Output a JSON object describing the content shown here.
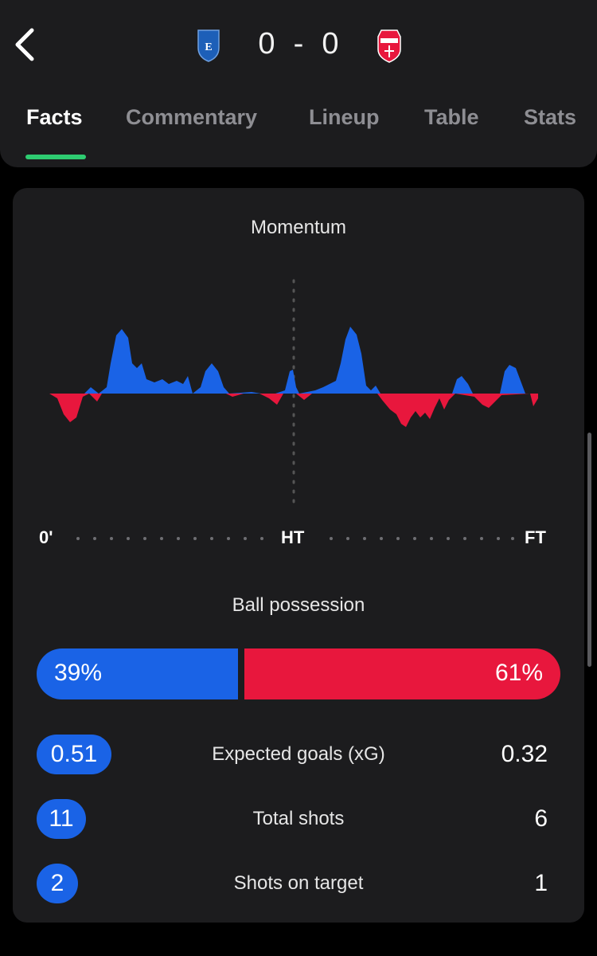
{
  "match": {
    "home_score": "0",
    "separator": "-",
    "away_score": "0",
    "home_crest_icon": "empoli-crest-icon",
    "away_crest_icon": "monza-crest-icon"
  },
  "tabs": [
    {
      "label": "Facts",
      "active": true
    },
    {
      "label": "Commentary",
      "active": false
    },
    {
      "label": "Lineup",
      "active": false
    },
    {
      "label": "Table",
      "active": false
    },
    {
      "label": "Stats",
      "active": false
    }
  ],
  "momentum": {
    "title": "Momentum",
    "labels": {
      "start": "0'",
      "half": "HT",
      "end": "FT"
    },
    "home_color": "#1a63e6",
    "away_color": "#e8173d"
  },
  "possession": {
    "title": "Ball possession",
    "home": "39%",
    "away": "61%",
    "home_fraction": 0.39
  },
  "stats": [
    {
      "label": "Expected goals (xG)",
      "home": "0.51",
      "away": "0.32"
    },
    {
      "label": "Total shots",
      "home": "11",
      "away": "6"
    },
    {
      "label": "Shots on target",
      "home": "2",
      "away": "1"
    }
  ],
  "colors": {
    "background": "#000000",
    "surface": "#1c1c1e",
    "home": "#1a63e6",
    "away": "#e8173d",
    "active_tab_indicator": "#2ecc71"
  }
}
